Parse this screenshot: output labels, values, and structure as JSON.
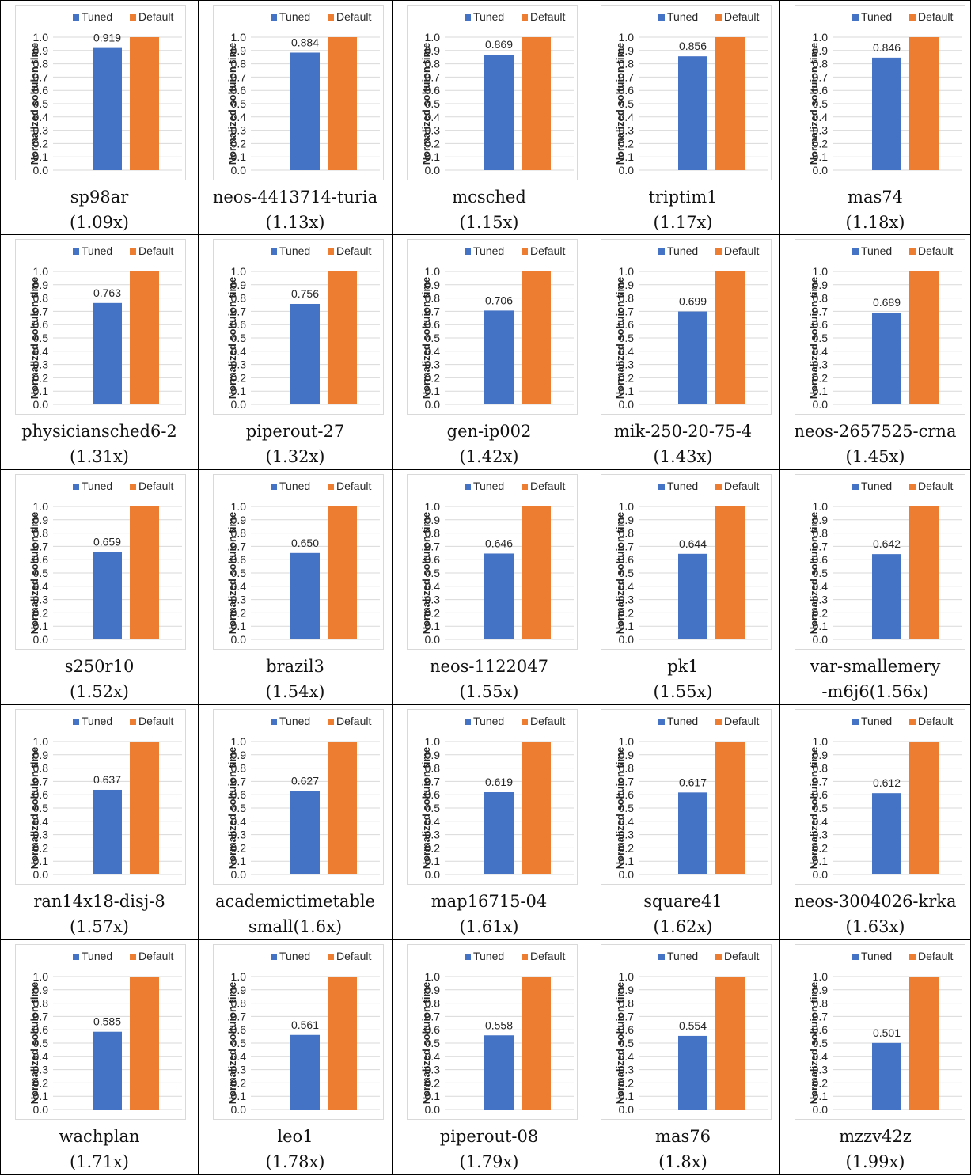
{
  "legend": [
    "Tuned",
    "Default"
  ],
  "colors": {
    "tuned": "#4472C4",
    "default": "#ED7D31"
  },
  "ylabel": "Normalized soltuion time",
  "chart_data": [
    {
      "type": "bar",
      "title": "",
      "series": [
        {
          "name": "Tuned",
          "values": [
            0.919
          ]
        },
        {
          "name": "Default",
          "values": [
            1.0
          ]
        }
      ],
      "ylabel": "Normalized soltuion time",
      "yticks": [
        "0.0",
        "0.1",
        "0.2",
        "0.3",
        "0.4",
        "0.5",
        "0.6",
        "0.7",
        "0.8",
        "0.9",
        "1.0"
      ],
      "ylim": [
        0,
        1.0
      ],
      "grid": true,
      "legend": "top",
      "data_label": "0.919",
      "caption": [
        "sp98ar",
        "(1.09x)"
      ]
    },
    {
      "type": "bar",
      "title": "",
      "series": [
        {
          "name": "Tuned",
          "values": [
            0.884
          ]
        },
        {
          "name": "Default",
          "values": [
            1.0
          ]
        }
      ],
      "ylabel": "Normalized soltuion time",
      "yticks": [
        "0.0",
        "0.1",
        "0.2",
        "0.3",
        "0.4",
        "0.5",
        "0.6",
        "0.7",
        "0.8",
        "0.9",
        "1.0"
      ],
      "ylim": [
        0,
        1.0
      ],
      "grid": true,
      "legend": "top",
      "data_label": "0.884",
      "caption": [
        "neos-4413714-turia",
        "(1.13x)"
      ]
    },
    {
      "type": "bar",
      "title": "",
      "series": [
        {
          "name": "Tuned",
          "values": [
            0.869
          ]
        },
        {
          "name": "Default",
          "values": [
            1.0
          ]
        }
      ],
      "ylabel": "Normalized soltuion time",
      "yticks": [
        "0.0",
        "0.1",
        "0.2",
        "0.3",
        "0.4",
        "0.5",
        "0.6",
        "0.7",
        "0.8",
        "0.9",
        "1.0"
      ],
      "ylim": [
        0,
        1.0
      ],
      "grid": true,
      "legend": "top",
      "data_label": "0.869",
      "caption": [
        "mcsched",
        "(1.15x)"
      ]
    },
    {
      "type": "bar",
      "title": "",
      "series": [
        {
          "name": "Tuned",
          "values": [
            0.856
          ]
        },
        {
          "name": "Default",
          "values": [
            1.0
          ]
        }
      ],
      "ylabel": "Normalized soltuion time",
      "yticks": [
        "0.0",
        "0.1",
        "0.2",
        "0.3",
        "0.4",
        "0.5",
        "0.6",
        "0.7",
        "0.8",
        "0.9",
        "1.0"
      ],
      "ylim": [
        0,
        1.0
      ],
      "grid": true,
      "legend": "top",
      "data_label": "0.856",
      "caption": [
        "triptim1",
        "(1.17x)"
      ]
    },
    {
      "type": "bar",
      "title": "",
      "series": [
        {
          "name": "Tuned",
          "values": [
            0.846
          ]
        },
        {
          "name": "Default",
          "values": [
            1.0
          ]
        }
      ],
      "ylabel": "Normalized soltuion time",
      "yticks": [
        "0.0",
        "0.1",
        "0.2",
        "0.3",
        "0.4",
        "0.5",
        "0.6",
        "0.7",
        "0.8",
        "0.9",
        "1.0"
      ],
      "ylim": [
        0,
        1.0
      ],
      "grid": true,
      "legend": "top",
      "data_label": "0.846",
      "caption": [
        "mas74",
        "(1.18x)"
      ]
    },
    {
      "type": "bar",
      "title": "",
      "series": [
        {
          "name": "Tuned",
          "values": [
            0.763
          ]
        },
        {
          "name": "Default",
          "values": [
            1.0
          ]
        }
      ],
      "ylabel": "Normalized soltuion time",
      "yticks": [
        "0.0",
        "0.1",
        "0.2",
        "0.3",
        "0.4",
        "0.5",
        "0.6",
        "0.7",
        "0.8",
        "0.9",
        "1.0"
      ],
      "ylim": [
        0,
        1.0
      ],
      "grid": true,
      "legend": "top",
      "data_label": "0.763",
      "caption": [
        "physiciansched6-2",
        "(1.31x)"
      ]
    },
    {
      "type": "bar",
      "title": "",
      "series": [
        {
          "name": "Tuned",
          "values": [
            0.756
          ]
        },
        {
          "name": "Default",
          "values": [
            1.0
          ]
        }
      ],
      "ylabel": "Normalized soltuion time",
      "yticks": [
        "0.0",
        "0.1",
        "0.2",
        "0.3",
        "0.4",
        "0.5",
        "0.6",
        "0.7",
        "0.8",
        "0.9",
        "1.0"
      ],
      "ylim": [
        0,
        1.0
      ],
      "grid": true,
      "legend": "top",
      "data_label": "0.756",
      "caption": [
        "piperout-27",
        "(1.32x)"
      ]
    },
    {
      "type": "bar",
      "title": "",
      "series": [
        {
          "name": "Tuned",
          "values": [
            0.706
          ]
        },
        {
          "name": "Default",
          "values": [
            1.0
          ]
        }
      ],
      "ylabel": "Normalized soltuion time",
      "yticks": [
        "0.0",
        "0.1",
        "0.2",
        "0.3",
        "0.4",
        "0.5",
        "0.6",
        "0.7",
        "0.8",
        "0.9",
        "1.0"
      ],
      "ylim": [
        0,
        1.0
      ],
      "grid": true,
      "legend": "top",
      "data_label": "0.706",
      "caption": [
        "gen-ip002",
        "(1.42x)"
      ]
    },
    {
      "type": "bar",
      "title": "",
      "series": [
        {
          "name": "Tuned",
          "values": [
            0.699
          ]
        },
        {
          "name": "Default",
          "values": [
            1.0
          ]
        }
      ],
      "ylabel": "Normalized soltuion time",
      "yticks": [
        "0.0",
        "0.1",
        "0.2",
        "0.3",
        "0.4",
        "0.5",
        "0.6",
        "0.7",
        "0.8",
        "0.9",
        "1.0"
      ],
      "ylim": [
        0,
        1.0
      ],
      "grid": true,
      "legend": "top",
      "data_label": "0.699",
      "caption": [
        "mik-250-20-75-4",
        "(1.43x)"
      ]
    },
    {
      "type": "bar",
      "title": "",
      "series": [
        {
          "name": "Tuned",
          "values": [
            0.689
          ]
        },
        {
          "name": "Default",
          "values": [
            1.0
          ]
        }
      ],
      "ylabel": "Normalized soltuion time",
      "yticks": [
        "0.0",
        "0.1",
        "0.2",
        "0.3",
        "0.4",
        "0.5",
        "0.6",
        "0.7",
        "0.8",
        "0.9",
        "1.0"
      ],
      "ylim": [
        0,
        1.0
      ],
      "grid": true,
      "legend": "top",
      "data_label": "0.689",
      "caption": [
        "neos-2657525-crna",
        "(1.45x)"
      ]
    },
    {
      "type": "bar",
      "title": "",
      "series": [
        {
          "name": "Tuned",
          "values": [
            0.659
          ]
        },
        {
          "name": "Default",
          "values": [
            1.0
          ]
        }
      ],
      "ylabel": "Normalized soltuion time",
      "yticks": [
        "0.0",
        "0.1",
        "0.2",
        "0.3",
        "0.4",
        "0.5",
        "0.6",
        "0.7",
        "0.8",
        "0.9",
        "1.0"
      ],
      "ylim": [
        0,
        1.0
      ],
      "grid": true,
      "legend": "top",
      "data_label": "0.659",
      "caption": [
        "s250r10",
        "(1.52x)"
      ]
    },
    {
      "type": "bar",
      "title": "",
      "series": [
        {
          "name": "Tuned",
          "values": [
            0.65
          ]
        },
        {
          "name": "Default",
          "values": [
            1.0
          ]
        }
      ],
      "ylabel": "Normalized soltuion time",
      "yticks": [
        "0.0",
        "0.1",
        "0.2",
        "0.3",
        "0.4",
        "0.5",
        "0.6",
        "0.7",
        "0.8",
        "0.9",
        "1.0"
      ],
      "ylim": [
        0,
        1.0
      ],
      "grid": true,
      "legend": "top",
      "data_label": "0.650",
      "caption": [
        "brazil3",
        "(1.54x)"
      ]
    },
    {
      "type": "bar",
      "title": "",
      "series": [
        {
          "name": "Tuned",
          "values": [
            0.646
          ]
        },
        {
          "name": "Default",
          "values": [
            1.0
          ]
        }
      ],
      "ylabel": "Normalized soltuion time",
      "yticks": [
        "0.0",
        "0.1",
        "0.2",
        "0.3",
        "0.4",
        "0.5",
        "0.6",
        "0.7",
        "0.8",
        "0.9",
        "1.0"
      ],
      "ylim": [
        0,
        1.0
      ],
      "grid": true,
      "legend": "top",
      "data_label": "0.646",
      "caption": [
        "neos-1122047",
        "(1.55x)"
      ]
    },
    {
      "type": "bar",
      "title": "",
      "series": [
        {
          "name": "Tuned",
          "values": [
            0.644
          ]
        },
        {
          "name": "Default",
          "values": [
            1.0
          ]
        }
      ],
      "ylabel": "Normalized soltuion time",
      "yticks": [
        "0.0",
        "0.1",
        "0.2",
        "0.3",
        "0.4",
        "0.5",
        "0.6",
        "0.7",
        "0.8",
        "0.9",
        "1.0"
      ],
      "ylim": [
        0,
        1.0
      ],
      "grid": true,
      "legend": "top",
      "data_label": "0.644",
      "caption": [
        "pk1",
        "(1.55x)"
      ]
    },
    {
      "type": "bar",
      "title": "",
      "series": [
        {
          "name": "Tuned",
          "values": [
            0.642
          ]
        },
        {
          "name": "Default",
          "values": [
            1.0
          ]
        }
      ],
      "ylabel": "Normalized soltuion time",
      "yticks": [
        "0.0",
        "0.1",
        "0.2",
        "0.3",
        "0.4",
        "0.5",
        "0.6",
        "0.7",
        "0.8",
        "0.9",
        "1.0"
      ],
      "ylim": [
        0,
        1.0
      ],
      "grid": true,
      "legend": "top",
      "data_label": "0.642",
      "caption": [
        "var-smallemery",
        "-m6j6(1.56x)"
      ]
    },
    {
      "type": "bar",
      "title": "",
      "series": [
        {
          "name": "Tuned",
          "values": [
            0.637
          ]
        },
        {
          "name": "Default",
          "values": [
            1.0
          ]
        }
      ],
      "ylabel": "Normalized soltuion time",
      "yticks": [
        "0.0",
        "0.1",
        "0.2",
        "0.3",
        "0.4",
        "0.5",
        "0.6",
        "0.7",
        "0.8",
        "0.9",
        "1.0"
      ],
      "ylim": [
        0,
        1.0
      ],
      "grid": true,
      "legend": "top",
      "data_label": "0.637",
      "caption": [
        "ran14x18-disj-8",
        "(1.57x)"
      ]
    },
    {
      "type": "bar",
      "title": "",
      "series": [
        {
          "name": "Tuned",
          "values": [
            0.627
          ]
        },
        {
          "name": "Default",
          "values": [
            1.0
          ]
        }
      ],
      "ylabel": "Normalized soltuion time",
      "yticks": [
        "0.0",
        "0.1",
        "0.2",
        "0.3",
        "0.4",
        "0.5",
        "0.6",
        "0.7",
        "0.8",
        "0.9",
        "1.0"
      ],
      "ylim": [
        0,
        1.0
      ],
      "grid": true,
      "legend": "top",
      "data_label": "0.627",
      "caption": [
        "academictimetable",
        "small(1.6x)"
      ]
    },
    {
      "type": "bar",
      "title": "",
      "series": [
        {
          "name": "Tuned",
          "values": [
            0.619
          ]
        },
        {
          "name": "Default",
          "values": [
            1.0
          ]
        }
      ],
      "ylabel": "Normalized soltuion time",
      "yticks": [
        "0.0",
        "0.1",
        "0.2",
        "0.3",
        "0.4",
        "0.5",
        "0.6",
        "0.7",
        "0.8",
        "0.9",
        "1.0"
      ],
      "ylim": [
        0,
        1.0
      ],
      "grid": true,
      "legend": "top",
      "data_label": "0.619",
      "caption": [
        "map16715-04",
        "(1.61x)"
      ]
    },
    {
      "type": "bar",
      "title": "",
      "series": [
        {
          "name": "Tuned",
          "values": [
            0.617
          ]
        },
        {
          "name": "Default",
          "values": [
            1.0
          ]
        }
      ],
      "ylabel": "Normalized soltuion time",
      "yticks": [
        "0.0",
        "0.1",
        "0.2",
        "0.3",
        "0.4",
        "0.5",
        "0.6",
        "0.7",
        "0.8",
        "0.9",
        "1.0"
      ],
      "ylim": [
        0,
        1.0
      ],
      "grid": true,
      "legend": "top",
      "data_label": "0.617",
      "caption": [
        "square41",
        "(1.62x)"
      ]
    },
    {
      "type": "bar",
      "title": "",
      "series": [
        {
          "name": "Tuned",
          "values": [
            0.612
          ]
        },
        {
          "name": "Default",
          "values": [
            1.0
          ]
        }
      ],
      "ylabel": "Normalized soltuion time",
      "yticks": [
        "0.0",
        "0.1",
        "0.2",
        "0.3",
        "0.4",
        "0.5",
        "0.6",
        "0.7",
        "0.8",
        "0.9",
        "1.0"
      ],
      "ylim": [
        0,
        1.0
      ],
      "grid": true,
      "legend": "top",
      "data_label": "0.612",
      "caption": [
        "neos-3004026-krka",
        "(1.63x)"
      ]
    },
    {
      "type": "bar",
      "title": "",
      "series": [
        {
          "name": "Tuned",
          "values": [
            0.585
          ]
        },
        {
          "name": "Default",
          "values": [
            1.0
          ]
        }
      ],
      "ylabel": "Normalized soltuion time",
      "yticks": [
        "0.0",
        "0.1",
        "0.2",
        "0.3",
        "0.4",
        "0.5",
        "0.6",
        "0.7",
        "0.8",
        "0.9",
        "1.0"
      ],
      "ylim": [
        0,
        1.0
      ],
      "grid": true,
      "legend": "top",
      "data_label": "0.585",
      "caption": [
        "wachplan",
        "(1.71x)"
      ]
    },
    {
      "type": "bar",
      "title": "",
      "series": [
        {
          "name": "Tuned",
          "values": [
            0.561
          ]
        },
        {
          "name": "Default",
          "values": [
            1.0
          ]
        }
      ],
      "ylabel": "Normalized soltuion time",
      "yticks": [
        "0.0",
        "0.1",
        "0.2",
        "0.3",
        "0.4",
        "0.5",
        "0.6",
        "0.7",
        "0.8",
        "0.9",
        "1.0"
      ],
      "ylim": [
        0,
        1.0
      ],
      "grid": true,
      "legend": "top",
      "data_label": "0.561",
      "caption": [
        "leo1",
        "(1.78x)"
      ]
    },
    {
      "type": "bar",
      "title": "",
      "series": [
        {
          "name": "Tuned",
          "values": [
            0.558
          ]
        },
        {
          "name": "Default",
          "values": [
            1.0
          ]
        }
      ],
      "ylabel": "Normalized soltuion time",
      "yticks": [
        "0.0",
        "0.1",
        "0.2",
        "0.3",
        "0.4",
        "0.5",
        "0.6",
        "0.7",
        "0.8",
        "0.9",
        "1.0"
      ],
      "ylim": [
        0,
        1.0
      ],
      "grid": true,
      "legend": "top",
      "data_label": "0.558",
      "caption": [
        "piperout-08",
        "(1.79x)"
      ]
    },
    {
      "type": "bar",
      "title": "",
      "series": [
        {
          "name": "Tuned",
          "values": [
            0.554
          ]
        },
        {
          "name": "Default",
          "values": [
            1.0
          ]
        }
      ],
      "ylabel": "Normalized soltuion time",
      "yticks": [
        "0.0",
        "0.1",
        "0.2",
        "0.3",
        "0.4",
        "0.5",
        "0.6",
        "0.7",
        "0.8",
        "0.9",
        "1.0"
      ],
      "ylim": [
        0,
        1.0
      ],
      "grid": true,
      "legend": "top",
      "data_label": "0.554",
      "caption": [
        "mas76",
        "(1.8x)"
      ]
    },
    {
      "type": "bar",
      "title": "",
      "series": [
        {
          "name": "Tuned",
          "values": [
            0.501
          ]
        },
        {
          "name": "Default",
          "values": [
            1.0
          ]
        }
      ],
      "ylabel": "Normalized soltuion time",
      "yticks": [
        "0.0",
        "0.1",
        "0.2",
        "0.3",
        "0.4",
        "0.5",
        "0.6",
        "0.7",
        "0.8",
        "0.9",
        "1.0"
      ],
      "ylim": [
        0,
        1.0
      ],
      "grid": true,
      "legend": "top",
      "data_label": "0.501",
      "caption": [
        "mzzv42z",
        "(1.99x)"
      ]
    }
  ]
}
